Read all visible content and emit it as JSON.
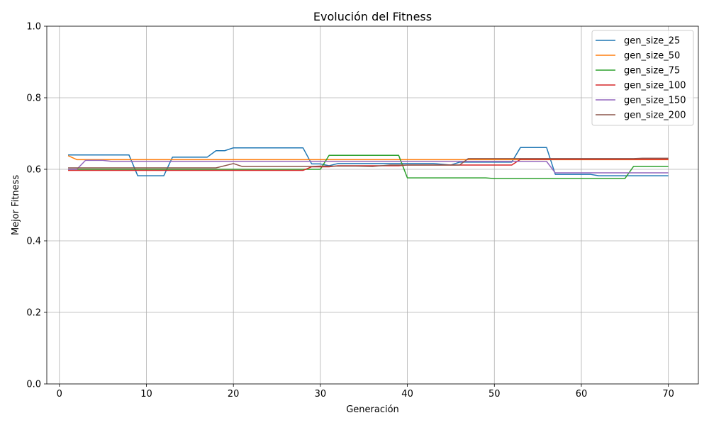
{
  "chart_data": {
    "type": "line",
    "title": "Evolución del Fitness",
    "xlabel": "Generación",
    "ylabel": "Mejor Fitness",
    "xlim": [
      -1.45,
      73.45
    ],
    "ylim": [
      0.0,
      1.0
    ],
    "xticks": [
      0,
      10,
      20,
      30,
      40,
      50,
      60,
      70
    ],
    "yticks": [
      0.0,
      0.2,
      0.4,
      0.6,
      0.8,
      1.0
    ],
    "ytick_labels": [
      "0.0",
      "0.2",
      "0.4",
      "0.6",
      "0.8",
      "1.0"
    ],
    "grid": true,
    "legend_position": "top-right",
    "series": [
      {
        "name": "gen_size_25",
        "color": "#1f77b4",
        "points": [
          [
            1,
            0.64
          ],
          [
            8,
            0.64
          ],
          [
            9,
            0.582
          ],
          [
            12,
            0.582
          ],
          [
            13,
            0.634
          ],
          [
            17,
            0.634
          ],
          [
            18,
            0.652
          ],
          [
            19,
            0.652
          ],
          [
            20,
            0.66
          ],
          [
            28,
            0.66
          ],
          [
            29,
            0.615
          ],
          [
            30,
            0.615
          ],
          [
            31,
            0.61
          ],
          [
            32,
            0.616
          ],
          [
            40,
            0.616
          ],
          [
            43,
            0.616
          ],
          [
            45,
            0.612
          ],
          [
            46,
            0.62
          ],
          [
            52,
            0.62
          ],
          [
            53,
            0.661
          ],
          [
            56,
            0.661
          ],
          [
            57,
            0.586
          ],
          [
            61,
            0.586
          ],
          [
            62,
            0.582
          ],
          [
            70,
            0.582
          ]
        ]
      },
      {
        "name": "gen_size_50",
        "color": "#ff7f0e",
        "points": [
          [
            1,
            0.638
          ],
          [
            2,
            0.627
          ],
          [
            70,
            0.627
          ]
        ]
      },
      {
        "name": "gen_size_75",
        "color": "#2ca02c",
        "points": [
          [
            1,
            0.6
          ],
          [
            30,
            0.6
          ],
          [
            31,
            0.639
          ],
          [
            39,
            0.639
          ],
          [
            40,
            0.576
          ],
          [
            49,
            0.576
          ],
          [
            50,
            0.574
          ],
          [
            65,
            0.574
          ],
          [
            66,
            0.608
          ],
          [
            70,
            0.608
          ]
        ]
      },
      {
        "name": "gen_size_100",
        "color": "#d62728",
        "points": [
          [
            1,
            0.597
          ],
          [
            28,
            0.597
          ],
          [
            29,
            0.607
          ],
          [
            31,
            0.607
          ],
          [
            32,
            0.61
          ],
          [
            36,
            0.61
          ],
          [
            37,
            0.61
          ],
          [
            39,
            0.61
          ],
          [
            40,
            0.612
          ],
          [
            52,
            0.612
          ],
          [
            53,
            0.628
          ],
          [
            70,
            0.628
          ]
        ]
      },
      {
        "name": "gen_size_150",
        "color": "#9467bd",
        "points": [
          [
            1,
            0.6
          ],
          [
            2,
            0.6
          ],
          [
            3,
            0.625
          ],
          [
            5,
            0.625
          ],
          [
            6,
            0.622
          ],
          [
            52,
            0.622
          ],
          [
            53,
            0.622
          ],
          [
            56,
            0.622
          ],
          [
            57,
            0.59
          ],
          [
            70,
            0.59
          ]
        ]
      },
      {
        "name": "gen_size_200",
        "color": "#8c564b",
        "points": [
          [
            1,
            0.604
          ],
          [
            18,
            0.604
          ],
          [
            20,
            0.616
          ],
          [
            21,
            0.608
          ],
          [
            29,
            0.608
          ],
          [
            30,
            0.609
          ],
          [
            34,
            0.609
          ],
          [
            36,
            0.608
          ],
          [
            38,
            0.612
          ],
          [
            44,
            0.612
          ],
          [
            46,
            0.612
          ],
          [
            47,
            0.63
          ],
          [
            66,
            0.63
          ],
          [
            67,
            0.631
          ],
          [
            70,
            0.631
          ]
        ]
      }
    ]
  }
}
